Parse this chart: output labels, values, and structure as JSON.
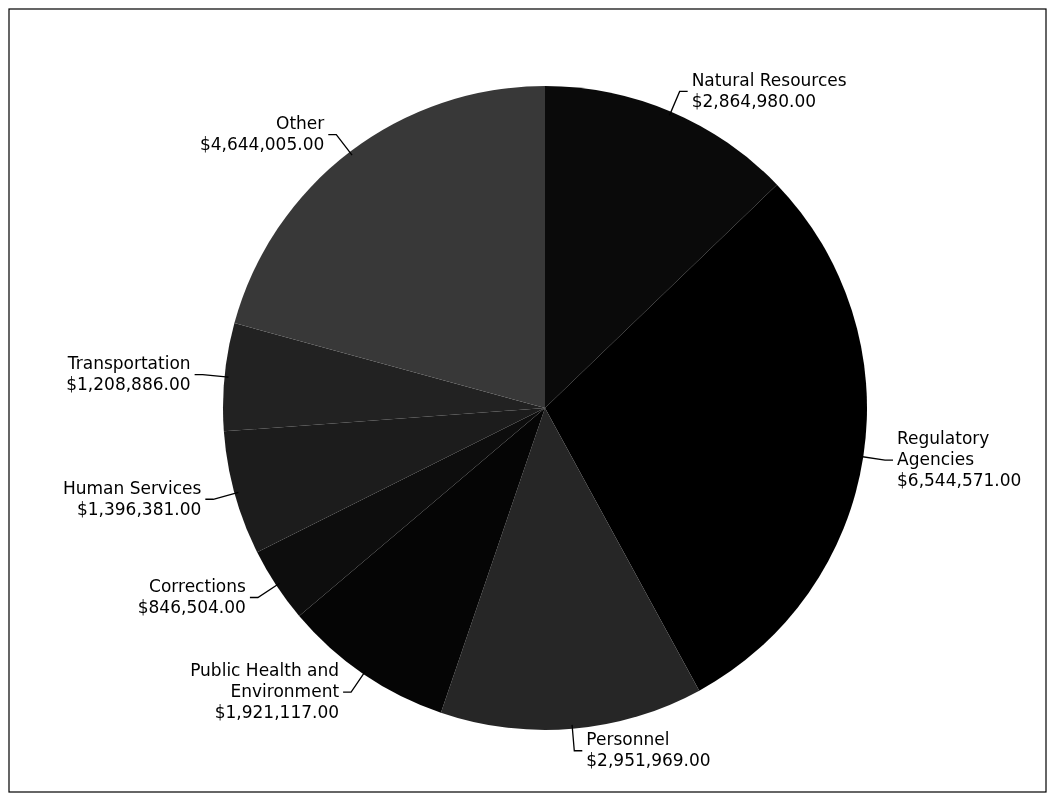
{
  "chart_data": {
    "type": "pie",
    "categories": [
      "Natural Resources",
      "Regulatory Agencies",
      "Personnel",
      "Public Health and Environment",
      "Corrections",
      "Human Services",
      "Transportation",
      "Other"
    ],
    "values": [
      2864980,
      6544571,
      2951969,
      1921117,
      846504,
      1396381,
      1208886,
      4644005
    ],
    "value_labels": [
      "$2,864,980.00",
      "$6,544,571.00",
      "$2,951,969.00",
      "$1,921,117.00",
      "$846,504.00",
      "$1,396,381.00",
      "$1,208,886.00",
      "$4,644,005.00"
    ],
    "colors": [
      "#0a0a0a",
      "#000000",
      "#262626",
      "#050505",
      "#0d0d0d",
      "#1c1c1c",
      "#222222",
      "#383838"
    ]
  }
}
